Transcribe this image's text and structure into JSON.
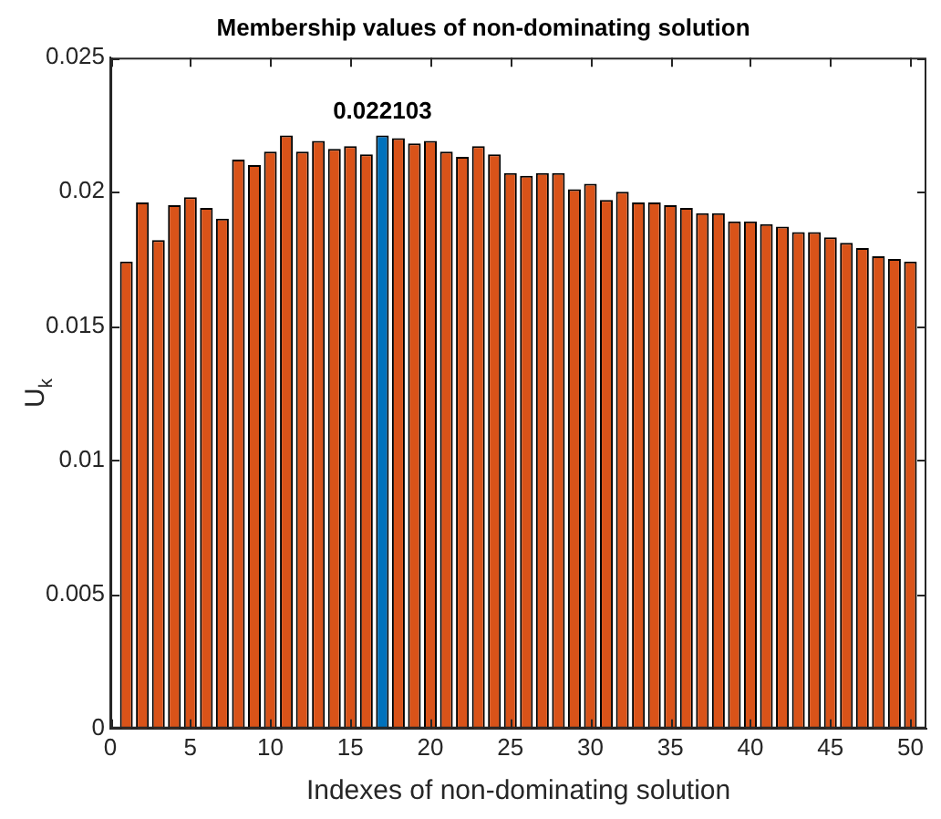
{
  "chart_data": {
    "type": "bar",
    "title": "Membership values of non-dominating solution",
    "xlabel": "Indexes of non-dominating solution",
    "ylabel": "U$_{k}$",
    "x": [
      1,
      2,
      3,
      4,
      5,
      6,
      7,
      8,
      9,
      10,
      11,
      12,
      13,
      14,
      15,
      16,
      17,
      18,
      19,
      20,
      21,
      22,
      23,
      24,
      25,
      26,
      27,
      28,
      29,
      30,
      31,
      32,
      33,
      34,
      35,
      36,
      37,
      38,
      39,
      40,
      41,
      42,
      43,
      44,
      45,
      46,
      47,
      48,
      49,
      50
    ],
    "values": [
      0.0174,
      0.0196,
      0.0182,
      0.0195,
      0.0198,
      0.0194,
      0.019,
      0.0212,
      0.021,
      0.0215,
      0.0221,
      0.0215,
      0.0219,
      0.0216,
      0.0217,
      0.0214,
      0.022103,
      0.022,
      0.0218,
      0.0219,
      0.0215,
      0.0213,
      0.0217,
      0.0214,
      0.0207,
      0.0206,
      0.0207,
      0.0207,
      0.0201,
      0.0203,
      0.0197,
      0.02,
      0.0196,
      0.0196,
      0.0195,
      0.0194,
      0.0192,
      0.0192,
      0.0189,
      0.0189,
      0.0188,
      0.0187,
      0.0185,
      0.0185,
      0.0183,
      0.0181,
      0.0179,
      0.0176,
      0.0175,
      0.0174
    ],
    "colors": [
      "#d95319",
      "#d95319",
      "#d95319",
      "#d95319",
      "#d95319",
      "#d95319",
      "#d95319",
      "#d95319",
      "#d95319",
      "#d95319",
      "#d95319",
      "#d95319",
      "#d95319",
      "#d95319",
      "#d95319",
      "#d95319",
      "#0072bd",
      "#d95319",
      "#d95319",
      "#d95319",
      "#d95319",
      "#d95319",
      "#d95319",
      "#d95319",
      "#d95319",
      "#d95319",
      "#d95319",
      "#d95319",
      "#d95319",
      "#d95319",
      "#d95319",
      "#d95319",
      "#d95319",
      "#d95319",
      "#d95319",
      "#d95319",
      "#d95319",
      "#d95319",
      "#d95319",
      "#d95319",
      "#d95319",
      "#d95319",
      "#d95319",
      "#d95319",
      "#d95319",
      "#d95319",
      "#d95319",
      "#d95319",
      "#d95319",
      "#d95319"
    ],
    "annotations": [
      {
        "text": "0.022103",
        "x": 17,
        "y": 0.022103
      }
    ],
    "xlim": [
      0,
      51
    ],
    "xticks": [
      0,
      5,
      10,
      15,
      20,
      25,
      30,
      35,
      40,
      45,
      50
    ],
    "ylim": [
      0,
      0.025
    ],
    "yticks": [
      0,
      0.005,
      0.01,
      0.015,
      0.02,
      0.025
    ],
    "grid": false,
    "legend": false
  }
}
